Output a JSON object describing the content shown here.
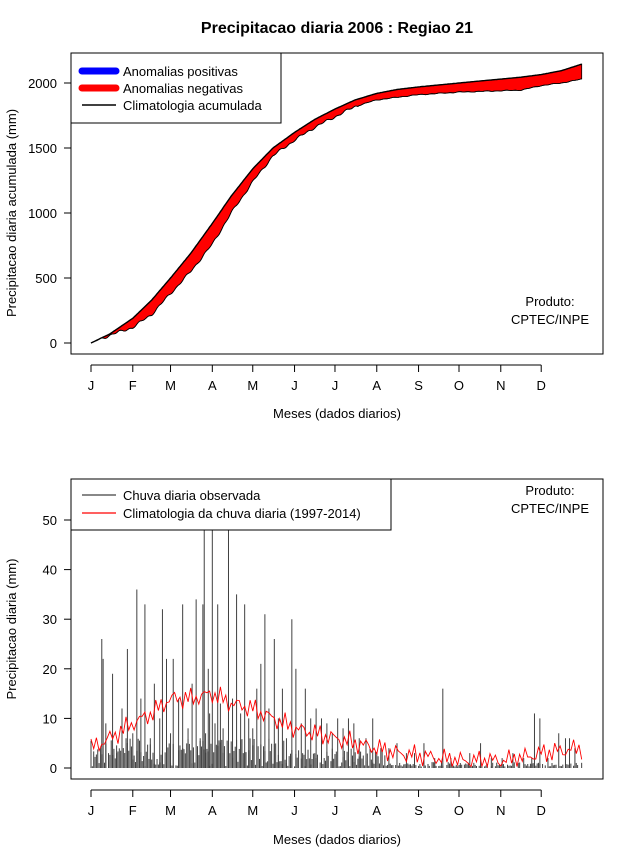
{
  "title": "Precipitacao diaria 2006 : Regiao 21",
  "colors": {
    "positive": "#0000ff",
    "negative": "#ff0000",
    "clim_line": "#000000",
    "obs_bars": "#404040",
    "clim_daily": "#ff0000"
  },
  "chart_data": [
    {
      "type": "area",
      "xlabel": "Meses (dados diarios)",
      "ylabel": "Precipitacao diaria acumulada (mm)",
      "x_ticks": [
        "J",
        "F",
        "M",
        "A",
        "M",
        "J",
        "J",
        "A",
        "S",
        "O",
        "N",
        "D"
      ],
      "x_tick_days": [
        1,
        32,
        60,
        91,
        121,
        152,
        182,
        213,
        244,
        274,
        305,
        335
      ],
      "xlim": [
        1,
        366
      ],
      "ylim": [
        0,
        2200
      ],
      "y_ticks": [
        0,
        500,
        1000,
        1500,
        2000
      ],
      "legend": {
        "position": "top-left",
        "entries": [
          {
            "label": "Anomalias positivas",
            "color": "#0000ff",
            "style": "thick"
          },
          {
            "label": "Anomalias negativas",
            "color": "#ff0000",
            "style": "thick"
          },
          {
            "label": "Climatologia acumulada",
            "color": "#000000",
            "style": "line"
          }
        ]
      },
      "annotation": [
        "Produto:",
        "CPTEC/INPE"
      ],
      "series": [
        {
          "name": "Climatologia acumulada",
          "days": [
            1,
            15,
            32,
            46,
            60,
            75,
            91,
            105,
            121,
            136,
            152,
            167,
            182,
            197,
            213,
            228,
            244,
            259,
            274,
            289,
            305,
            320,
            335,
            350,
            365
          ],
          "values": [
            0,
            70,
            190,
            330,
            500,
            690,
            920,
            1130,
            1340,
            1500,
            1620,
            1720,
            1800,
            1870,
            1920,
            1950,
            1970,
            1985,
            2000,
            2015,
            2030,
            2045,
            2065,
            2095,
            2145
          ]
        },
        {
          "name": "Observado acumulado",
          "days": [
            1,
            15,
            32,
            46,
            60,
            75,
            91,
            105,
            121,
            136,
            152,
            167,
            182,
            197,
            213,
            228,
            244,
            259,
            274,
            289,
            305,
            320,
            335,
            350,
            365
          ],
          "values": [
            0,
            60,
            120,
            220,
            380,
            550,
            760,
            1000,
            1240,
            1440,
            1560,
            1660,
            1740,
            1820,
            1870,
            1890,
            1910,
            1920,
            1930,
            1935,
            1940,
            1945,
            1980,
            2000,
            2030
          ]
        }
      ]
    },
    {
      "type": "bar",
      "xlabel": "Meses (dados diarios)",
      "ylabel": "Precipitacao diaria (mm)",
      "x_ticks": [
        "J",
        "F",
        "M",
        "A",
        "M",
        "J",
        "J",
        "A",
        "S",
        "O",
        "N",
        "D"
      ],
      "x_tick_days": [
        1,
        32,
        60,
        91,
        121,
        152,
        182,
        213,
        244,
        274,
        305,
        335
      ],
      "xlim": [
        1,
        366
      ],
      "ylim": [
        0,
        55
      ],
      "y_ticks": [
        0,
        10,
        20,
        30,
        40,
        50
      ],
      "legend": {
        "position": "top-left",
        "entries": [
          {
            "label": "Chuva diaria observada",
            "color": "#404040",
            "style": "line"
          },
          {
            "label": "Climatologia da chuva diaria (1997-2014)",
            "color": "#ff0000",
            "style": "line"
          }
        ]
      },
      "annotation": [
        "Produto:",
        "CPTEC/INPE"
      ],
      "series": [
        {
          "name": "Chuva diaria observada",
          "days": [
            9,
            10,
            12,
            14,
            17,
            20,
            24,
            28,
            32,
            35,
            38,
            41,
            45,
            48,
            52,
            54,
            57,
            60,
            62,
            66,
            69,
            73,
            76,
            79,
            82,
            84,
            85,
            86,
            88,
            89,
            91,
            93,
            95,
            97,
            99,
            103,
            106,
            109,
            112,
            115,
            118,
            121,
            124,
            127,
            130,
            133,
            137,
            140,
            143,
            146,
            150,
            153,
            157,
            160,
            164,
            168,
            172,
            176,
            180,
            184,
            188,
            192,
            196,
            200,
            205,
            210,
            216,
            222,
            228,
            235,
            241,
            248,
            256,
            262,
            268,
            275,
            282,
            290,
            298,
            306,
            314,
            322,
            328,
            330,
            334,
            340,
            348,
            353,
            356,
            360
          ],
          "values": [
            26,
            22,
            9,
            3,
            19,
            3,
            12,
            24,
            7,
            36,
            14,
            33,
            6,
            17,
            10,
            32,
            22,
            7,
            22,
            14,
            33,
            8,
            17,
            34,
            6,
            33,
            49,
            7,
            20,
            11,
            48,
            9,
            33,
            13,
            8,
            49,
            14,
            35,
            11,
            33,
            10,
            8,
            16,
            21,
            31,
            12,
            26,
            10,
            16,
            6,
            30,
            20,
            9,
            16,
            10,
            12,
            10,
            9,
            7,
            10,
            8,
            10,
            9,
            6,
            6,
            10,
            4,
            4,
            5,
            3,
            3,
            5,
            2,
            16,
            2,
            1,
            3,
            5,
            2,
            2,
            3,
            2,
            2,
            11,
            10,
            2,
            7,
            6,
            6,
            4
          ]
        },
        {
          "name": "Climatologia da chuva diaria (1997-2014)",
          "days": [
            1,
            15,
            32,
            46,
            60,
            75,
            91,
            105,
            121,
            136,
            152,
            167,
            182,
            197,
            213,
            228,
            244,
            259,
            274,
            289,
            305,
            320,
            335,
            350,
            365
          ],
          "values": [
            4,
            6,
            9,
            11,
            14,
            14,
            15,
            13,
            12,
            10,
            8,
            7,
            6,
            5,
            4,
            3,
            2.5,
            2,
            1.5,
            1.5,
            1.5,
            2,
            3,
            3.5,
            4
          ]
        }
      ]
    }
  ]
}
